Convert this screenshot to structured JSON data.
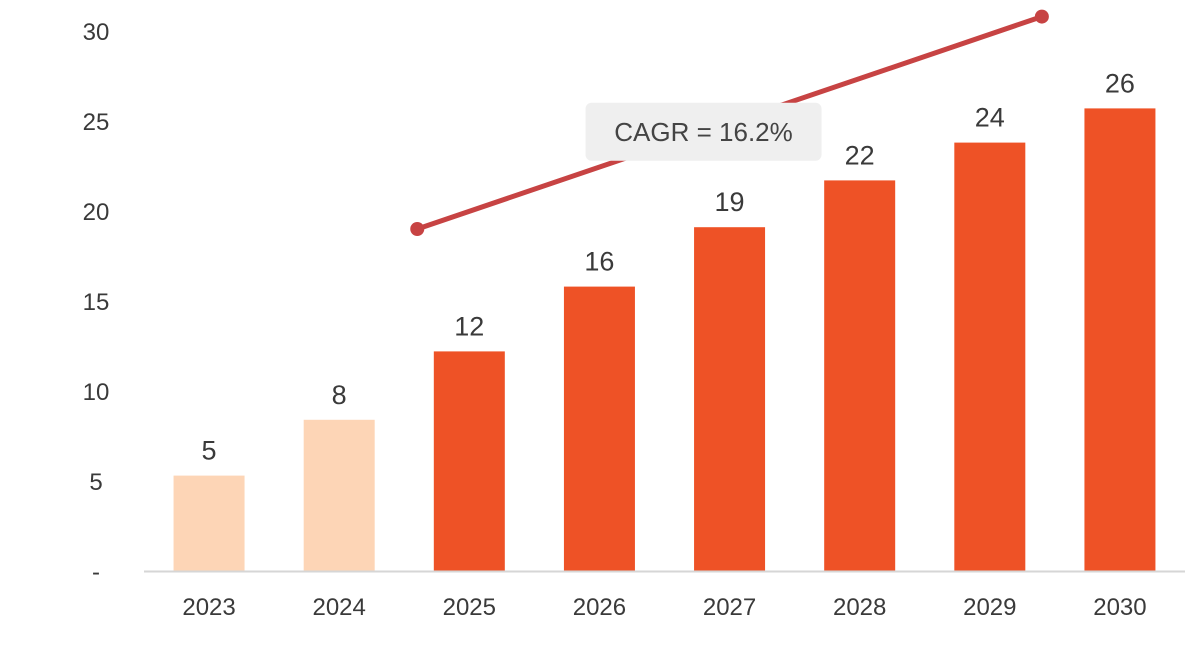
{
  "chart_data": {
    "type": "bar",
    "categories": [
      "2023",
      "2024",
      "2025",
      "2026",
      "2027",
      "2028",
      "2029",
      "2030"
    ],
    "values": [
      5.3,
      8.4,
      12.2,
      15.8,
      19.1,
      21.7,
      23.8,
      25.7
    ],
    "data_labels": [
      "5",
      "8",
      "12",
      "16",
      "19",
      "22",
      "24",
      "26"
    ],
    "historical_count": 2,
    "ylim": [
      0,
      30
    ],
    "y_ticks": [
      0,
      5,
      10,
      15,
      20,
      25,
      30
    ],
    "y_tick_labels": [
      "-",
      "5",
      "10",
      "15",
      "20",
      "25",
      "30"
    ],
    "colors": {
      "historical": "#FDD5B6",
      "forecast": "#EE5226",
      "trend": "#C74343",
      "callout_bg": "#EFEFEF",
      "axis": "#D6D6D6"
    },
    "trend": {
      "label": "CAGR = 16.2%",
      "start": {
        "x_index": 1.6,
        "y": 19.0
      },
      "end": {
        "x_index": 6.4,
        "y": 30.8
      },
      "label_at": {
        "x_index": 3.8,
        "y": 24.4
      }
    },
    "title": "",
    "xlabel": "",
    "ylabel": ""
  }
}
